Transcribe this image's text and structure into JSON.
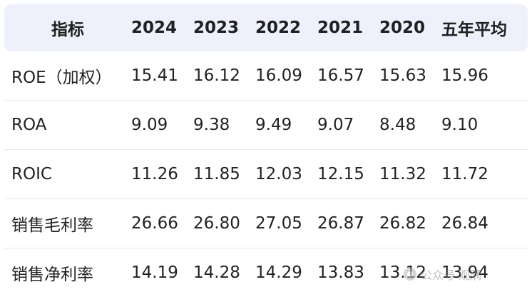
{
  "table": {
    "headers": [
      "指标",
      "2024",
      "2023",
      "2022",
      "2021",
      "2020",
      "五年平均"
    ],
    "rows": [
      [
        "ROE（加权）",
        "15.41",
        "16.12",
        "16.09",
        "16.57",
        "15.63",
        "15.96"
      ],
      [
        "ROA",
        "9.09",
        "9.38",
        "9.49",
        "9.07",
        "8.48",
        "9.10"
      ],
      [
        "ROIC",
        "11.26",
        "11.85",
        "12.03",
        "12.15",
        "11.32",
        "11.72"
      ],
      [
        "销售毛利率",
        "26.66",
        "26.80",
        "27.05",
        "26.87",
        "26.82",
        "26.84"
      ],
      [
        "销售净利率",
        "14.19",
        "14.28",
        "14.29",
        "13.83",
        "13.12",
        "13.94"
      ]
    ]
  },
  "watermark": {
    "text": "公众号 观隅",
    "icon": "wechat-icon"
  },
  "colors": {
    "header_bg": "#eef1fb",
    "row_divider": "#e6e8ef",
    "text": "#222222"
  }
}
